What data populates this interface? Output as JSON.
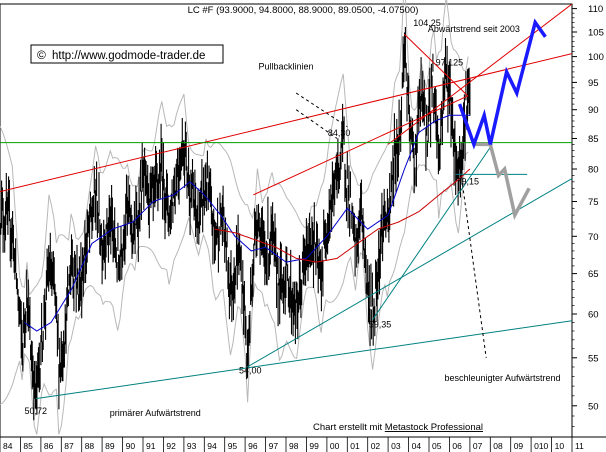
{
  "chart_data": {
    "type": "line",
    "title": "LC #F (93.9000, 94.8000, 88.9000, 89.0500, -4.07500)",
    "watermark": "http://www.godmode-trader.de",
    "copyright_symbol": "©",
    "credit_prefix": "Chart erstellt mit ",
    "credit_link": "Metastock Professional",
    "scale": "log",
    "ylim": [
      47,
      111
    ],
    "y_ticks": [
      50,
      55,
      60,
      65,
      70,
      75,
      80,
      85,
      90,
      95,
      100,
      105,
      110
    ],
    "x_range": [
      1984,
      2012
    ],
    "x_ticks": [
      "84",
      "85",
      "86",
      "87",
      "88",
      "89",
      "90",
      "91",
      "92",
      "93",
      "94",
      "95",
      "96",
      "97",
      "98",
      "99",
      "00",
      "01",
      "02",
      "03",
      "04",
      "05",
      "06",
      "07",
      "08",
      "09",
      "010",
      "10",
      "11"
    ],
    "price_anchors": [
      [
        1984.0,
        74
      ],
      [
        1984.6,
        71
      ],
      [
        1985.1,
        56
      ],
      [
        1985.3,
        63
      ],
      [
        1985.5,
        56
      ],
      [
        1985.75,
        50.72
      ],
      [
        1986.0,
        56
      ],
      [
        1986.4,
        66
      ],
      [
        1986.7,
        62
      ],
      [
        1986.9,
        54
      ],
      [
        1987.2,
        58
      ],
      [
        1987.5,
        67
      ],
      [
        1987.9,
        63
      ],
      [
        1988.3,
        70
      ],
      [
        1988.7,
        76
      ],
      [
        1989.0,
        69
      ],
      [
        1989.4,
        72
      ],
      [
        1989.8,
        66
      ],
      [
        1990.2,
        74
      ],
      [
        1990.6,
        70
      ],
      [
        1991.0,
        78
      ],
      [
        1991.5,
        75
      ],
      [
        1991.9,
        80
      ],
      [
        1992.3,
        73
      ],
      [
        1992.7,
        80
      ],
      [
        1993.0,
        84.3
      ],
      [
        1993.3,
        77
      ],
      [
        1993.7,
        72
      ],
      [
        1994.1,
        78
      ],
      [
        1994.5,
        70
      ],
      [
        1994.9,
        73
      ],
      [
        1995.3,
        63
      ],
      [
        1995.7,
        68
      ],
      [
        1996.0,
        60
      ],
      [
        1996.1,
        54
      ],
      [
        1996.35,
        65
      ],
      [
        1996.6,
        74
      ],
      [
        1996.9,
        67
      ],
      [
        1997.3,
        70
      ],
      [
        1997.7,
        63
      ],
      [
        1998.0,
        65
      ],
      [
        1998.5,
        60
      ],
      [
        1998.9,
        66
      ],
      [
        1999.3,
        70
      ],
      [
        1999.7,
        64
      ],
      [
        2000.0,
        72
      ],
      [
        2000.5,
        79
      ],
      [
        2000.8,
        84.3
      ],
      [
        2001.1,
        75
      ],
      [
        2001.4,
        68
      ],
      [
        2001.7,
        74
      ],
      [
        2002.0,
        63
      ],
      [
        2002.25,
        59.35
      ],
      [
        2002.5,
        66
      ],
      [
        2002.8,
        73
      ],
      [
        2003.0,
        71
      ],
      [
        2003.3,
        82
      ],
      [
        2003.6,
        86
      ],
      [
        2003.8,
        104.25
      ],
      [
        2004.0,
        88
      ],
      [
        2004.3,
        81
      ],
      [
        2004.6,
        93
      ],
      [
        2004.9,
        86
      ],
      [
        2005.2,
        96
      ],
      [
        2005.5,
        82
      ],
      [
        2005.8,
        98
      ],
      [
        2006.0,
        93
      ],
      [
        2006.3,
        82
      ],
      [
        2006.45,
        79.15
      ],
      [
        2006.7,
        86
      ],
      [
        2006.9,
        94
      ],
      [
        2007.0,
        89.05
      ]
    ],
    "ma_anchors": [
      [
        1985.2,
        59
      ],
      [
        1985.8,
        58
      ],
      [
        1986.5,
        59
      ],
      [
        1987.5,
        63
      ],
      [
        1988.5,
        69
      ],
      [
        1989.5,
        71
      ],
      [
        1990.5,
        72
      ],
      [
        1991.5,
        75
      ],
      [
        1992.5,
        76
      ],
      [
        1993.3,
        78
      ],
      [
        1994.0,
        76
      ],
      [
        1994.8,
        73
      ],
      [
        1995.5,
        70
      ],
      [
        1996.3,
        68
      ],
      [
        1997.0,
        68.5
      ],
      [
        1998.0,
        66.5
      ],
      [
        1999.0,
        67
      ],
      [
        2000.0,
        70
      ],
      [
        2001.0,
        74
      ],
      [
        2002.0,
        71
      ],
      [
        2003.0,
        73
      ],
      [
        2003.8,
        80
      ],
      [
        2004.5,
        86
      ],
      [
        2005.3,
        88
      ],
      [
        2006.0,
        89
      ],
      [
        2007.0,
        89
      ]
    ],
    "ma2_anchors": [
      [
        1994.5,
        71
      ],
      [
        1995.5,
        70.5
      ],
      [
        1996.5,
        69.5
      ],
      [
        1997.5,
        68.5
      ],
      [
        1998.5,
        67
      ],
      [
        1999.5,
        66.5
      ],
      [
        2000.5,
        67
      ],
      [
        2001.5,
        69
      ],
      [
        2002.5,
        71
      ],
      [
        2003.5,
        72
      ],
      [
        2004.5,
        73.5
      ],
      [
        2005.5,
        76
      ],
      [
        2006.5,
        78.5
      ],
      [
        2007.0,
        80
      ]
    ],
    "projection_blue": [
      [
        2006.5,
        91
      ],
      [
        2007.2,
        84
      ],
      [
        2007.7,
        89
      ],
      [
        2008.0,
        84
      ],
      [
        2008.8,
        97
      ],
      [
        2009.3,
        93
      ],
      [
        2010.2,
        107
      ],
      [
        2010.7,
        104
      ]
    ],
    "projection_grey": [
      [
        2007.2,
        84
      ],
      [
        2008.0,
        84
      ],
      [
        2008.4,
        79
      ],
      [
        2008.7,
        80
      ],
      [
        2009.2,
        73
      ],
      [
        2009.9,
        77
      ]
    ],
    "lines": [
      {
        "name": "red-upper-trend",
        "color": "#e00000",
        "x": [
          1984.0,
          2012.0
        ],
        "y": [
          76.5,
          100.6
        ]
      },
      {
        "name": "red-outer-channel",
        "color": "#e00000",
        "x": [
          2003.0,
          2012.0
        ],
        "y": [
          84,
          111
        ]
      },
      {
        "name": "red-pullback-top",
        "color": "#e00000",
        "x": [
          2003.8,
          2006.9
        ],
        "y": [
          104.5,
          92.5
        ]
      },
      {
        "name": "red-pullback-left",
        "color": "#e00000",
        "x": [
          1996.4,
          2006.9
        ],
        "y": [
          76,
          92.5
        ]
      },
      {
        "name": "green-horizontal",
        "color": "#00a000",
        "x": [
          1984.0,
          2012.0
        ],
        "y": [
          84.3,
          84.3
        ]
      },
      {
        "name": "primary-uptrend",
        "color": "#008080",
        "x": [
          1985.75,
          2012.0
        ],
        "y": [
          50.72,
          59.2
        ]
      },
      {
        "name": "accelerated-uptrend",
        "color": "#008080",
        "x": [
          1996.1,
          2012.0
        ],
        "y": [
          54.0,
          78.5
        ]
      },
      {
        "name": "trend-2002-2006",
        "color": "#008080",
        "x": [
          2002.25,
          2008.1
        ],
        "y": [
          59.35,
          84
        ]
      },
      {
        "name": "support-7915",
        "color": "#008080",
        "x": [
          2006.3,
          2009.8
        ],
        "y": [
          79.15,
          79.15
        ]
      }
    ],
    "dashed_pointers": [
      {
        "name": "pullback-pointer-1",
        "x": [
          1998.5,
          2001.0
        ],
        "y": [
          93,
          87
        ]
      },
      {
        "name": "pullback-pointer-2",
        "x": [
          1998.5,
          2000.5
        ],
        "y": [
          90,
          85
        ]
      },
      {
        "name": "accel-pointer",
        "x": [
          2006.6,
          2007.8
        ],
        "y": [
          78.5,
          55
        ]
      }
    ],
    "annotations": [
      {
        "key": "low_1985",
        "text": "50,72",
        "x": 1985.75,
        "y": 49.2,
        "anchor": "middle"
      },
      {
        "key": "low_1996",
        "text": "54,00",
        "x": 1996.25,
        "y": 53.3,
        "anchor": "middle"
      },
      {
        "key": "low_2002",
        "text": "59,35",
        "x": 2002.6,
        "y": 58.4,
        "anchor": "middle"
      },
      {
        "key": "high_1993",
        "text": "84,30",
        "x": 2000.6,
        "y": 85.4,
        "anchor": "middle"
      },
      {
        "key": "high_2003",
        "text": "104,25",
        "x": 2004.9,
        "y": 106.3,
        "anchor": "middle"
      },
      {
        "key": "high_2006",
        "text": "97,125",
        "x": 2006.0,
        "y": 98.2,
        "anchor": "middle"
      },
      {
        "key": "low_2006",
        "text": "79,15",
        "x": 2006.9,
        "y": 77.6,
        "anchor": "middle"
      },
      {
        "key": "pullback_label",
        "text": "Pullbacklinien",
        "x": 1998.0,
        "y": 97.5,
        "anchor": "middle"
      },
      {
        "key": "downtrend_label",
        "text": "Abwärtstrend seit 2003",
        "x": 2007.2,
        "y": 105.0,
        "anchor": "middle"
      },
      {
        "key": "primary_label",
        "text": "primärer Aufwärtstrend",
        "x": 1991.6,
        "y": 49.0,
        "anchor": "middle"
      },
      {
        "key": "accel_label",
        "text": "beschleunigter Aufwärtstrend",
        "x": 2008.6,
        "y": 52.5,
        "anchor": "middle"
      }
    ],
    "grid": false,
    "colors": {
      "price": "#000000",
      "ma": "#0000cc",
      "ma2": "#cc0000",
      "band": "#b8b8b8",
      "projection_blue": "#1a1aff",
      "projection_grey": "#a0a0a0"
    }
  }
}
